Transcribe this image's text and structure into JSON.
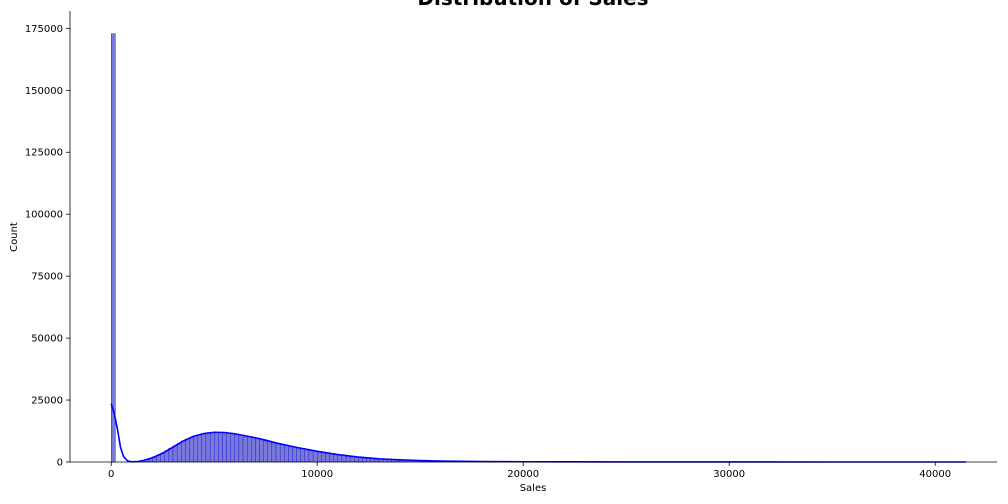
{
  "chart_data": {
    "type": "histogram",
    "title": "Distribution of Sales",
    "xlabel": "Sales",
    "ylabel": "Count",
    "xlim": [
      -2000,
      43000
    ],
    "ylim": [
      0,
      182000
    ],
    "xticks": [
      0,
      10000,
      20000,
      30000,
      40000
    ],
    "yticks": [
      0,
      25000,
      50000,
      75000,
      100000,
      125000,
      150000,
      175000
    ],
    "bar_color": "#0000cd",
    "bar_fill_color": "#6a6ad8",
    "kde_color": "#0000ff",
    "grid": false,
    "legend": false,
    "bin_width": 200,
    "bins_start": 0,
    "bin_counts": [
      172800,
      0,
      0,
      0,
      0,
      0,
      0,
      0,
      0,
      0,
      0,
      0,
      0,
      0,
      0,
      0,
      0,
      0,
      0,
      0,
      0,
      0,
      0,
      0,
      0,
      0,
      0,
      0,
      0,
      0,
      0,
      0,
      0,
      0,
      0,
      0,
      0,
      0,
      0,
      0,
      0,
      0,
      0,
      0,
      0,
      0,
      0,
      0,
      0,
      0,
      0,
      0,
      0,
      0,
      0,
      0,
      0,
      0,
      0,
      0,
      0,
      0,
      0,
      0,
      0,
      0,
      0,
      0,
      0,
      0,
      0,
      0,
      0,
      0,
      0,
      0,
      0,
      0,
      0,
      0,
      0,
      0,
      0,
      0,
      0,
      0,
      0,
      0,
      0,
      0,
      0,
      0,
      0,
      0,
      0,
      0,
      0,
      0,
      0,
      0,
      0,
      0,
      0,
      0,
      0,
      0,
      0,
      0,
      0,
      0,
      0,
      0,
      0,
      0,
      0,
      0,
      0,
      0,
      0,
      0,
      0,
      0,
      0,
      0,
      0,
      0,
      0,
      0,
      0,
      0,
      0,
      0,
      0,
      0,
      0,
      0,
      0,
      0,
      0,
      0,
      0,
      0,
      0,
      0,
      0,
      0,
      0,
      0,
      0,
      0,
      0,
      0,
      0,
      0,
      0,
      0,
      0,
      0,
      0,
      0,
      0,
      0,
      0,
      0,
      0,
      0,
      0,
      0,
      0,
      0,
      0,
      0,
      0,
      0,
      0,
      0,
      0,
      0,
      0,
      0,
      0,
      0,
      0,
      0,
      0,
      0,
      0,
      0,
      0,
      0,
      0,
      0,
      0,
      0,
      0,
      0,
      0,
      0,
      0,
      0,
      0,
      0,
      0,
      0,
      0,
      0,
      0,
      0,
      0,
      0,
      0,
      0,
      0,
      0,
      0,
      0,
      0,
      0,
      0
    ],
    "kde": {
      "x": [
        0,
        150,
        300,
        450,
        600,
        800,
        1000,
        1300,
        1600,
        2000,
        2500,
        3000,
        3500,
        4000,
        4500,
        5000,
        5500,
        6000,
        6500,
        7000,
        7500,
        8000,
        9000,
        10000,
        11000,
        12000,
        13000,
        14000,
        15000,
        16000,
        18000,
        20000,
        22000,
        25000,
        30000,
        35000,
        41500
      ],
      "y": [
        23500,
        19500,
        13500,
        6000,
        2200,
        400,
        100,
        200,
        700,
        1700,
        3600,
        6000,
        8500,
        10400,
        11500,
        12000,
        11900,
        11400,
        10600,
        9800,
        8800,
        7700,
        5900,
        4300,
        3000,
        2000,
        1300,
        900,
        600,
        400,
        200,
        100,
        60,
        30,
        10,
        5,
        2
      ]
    }
  }
}
